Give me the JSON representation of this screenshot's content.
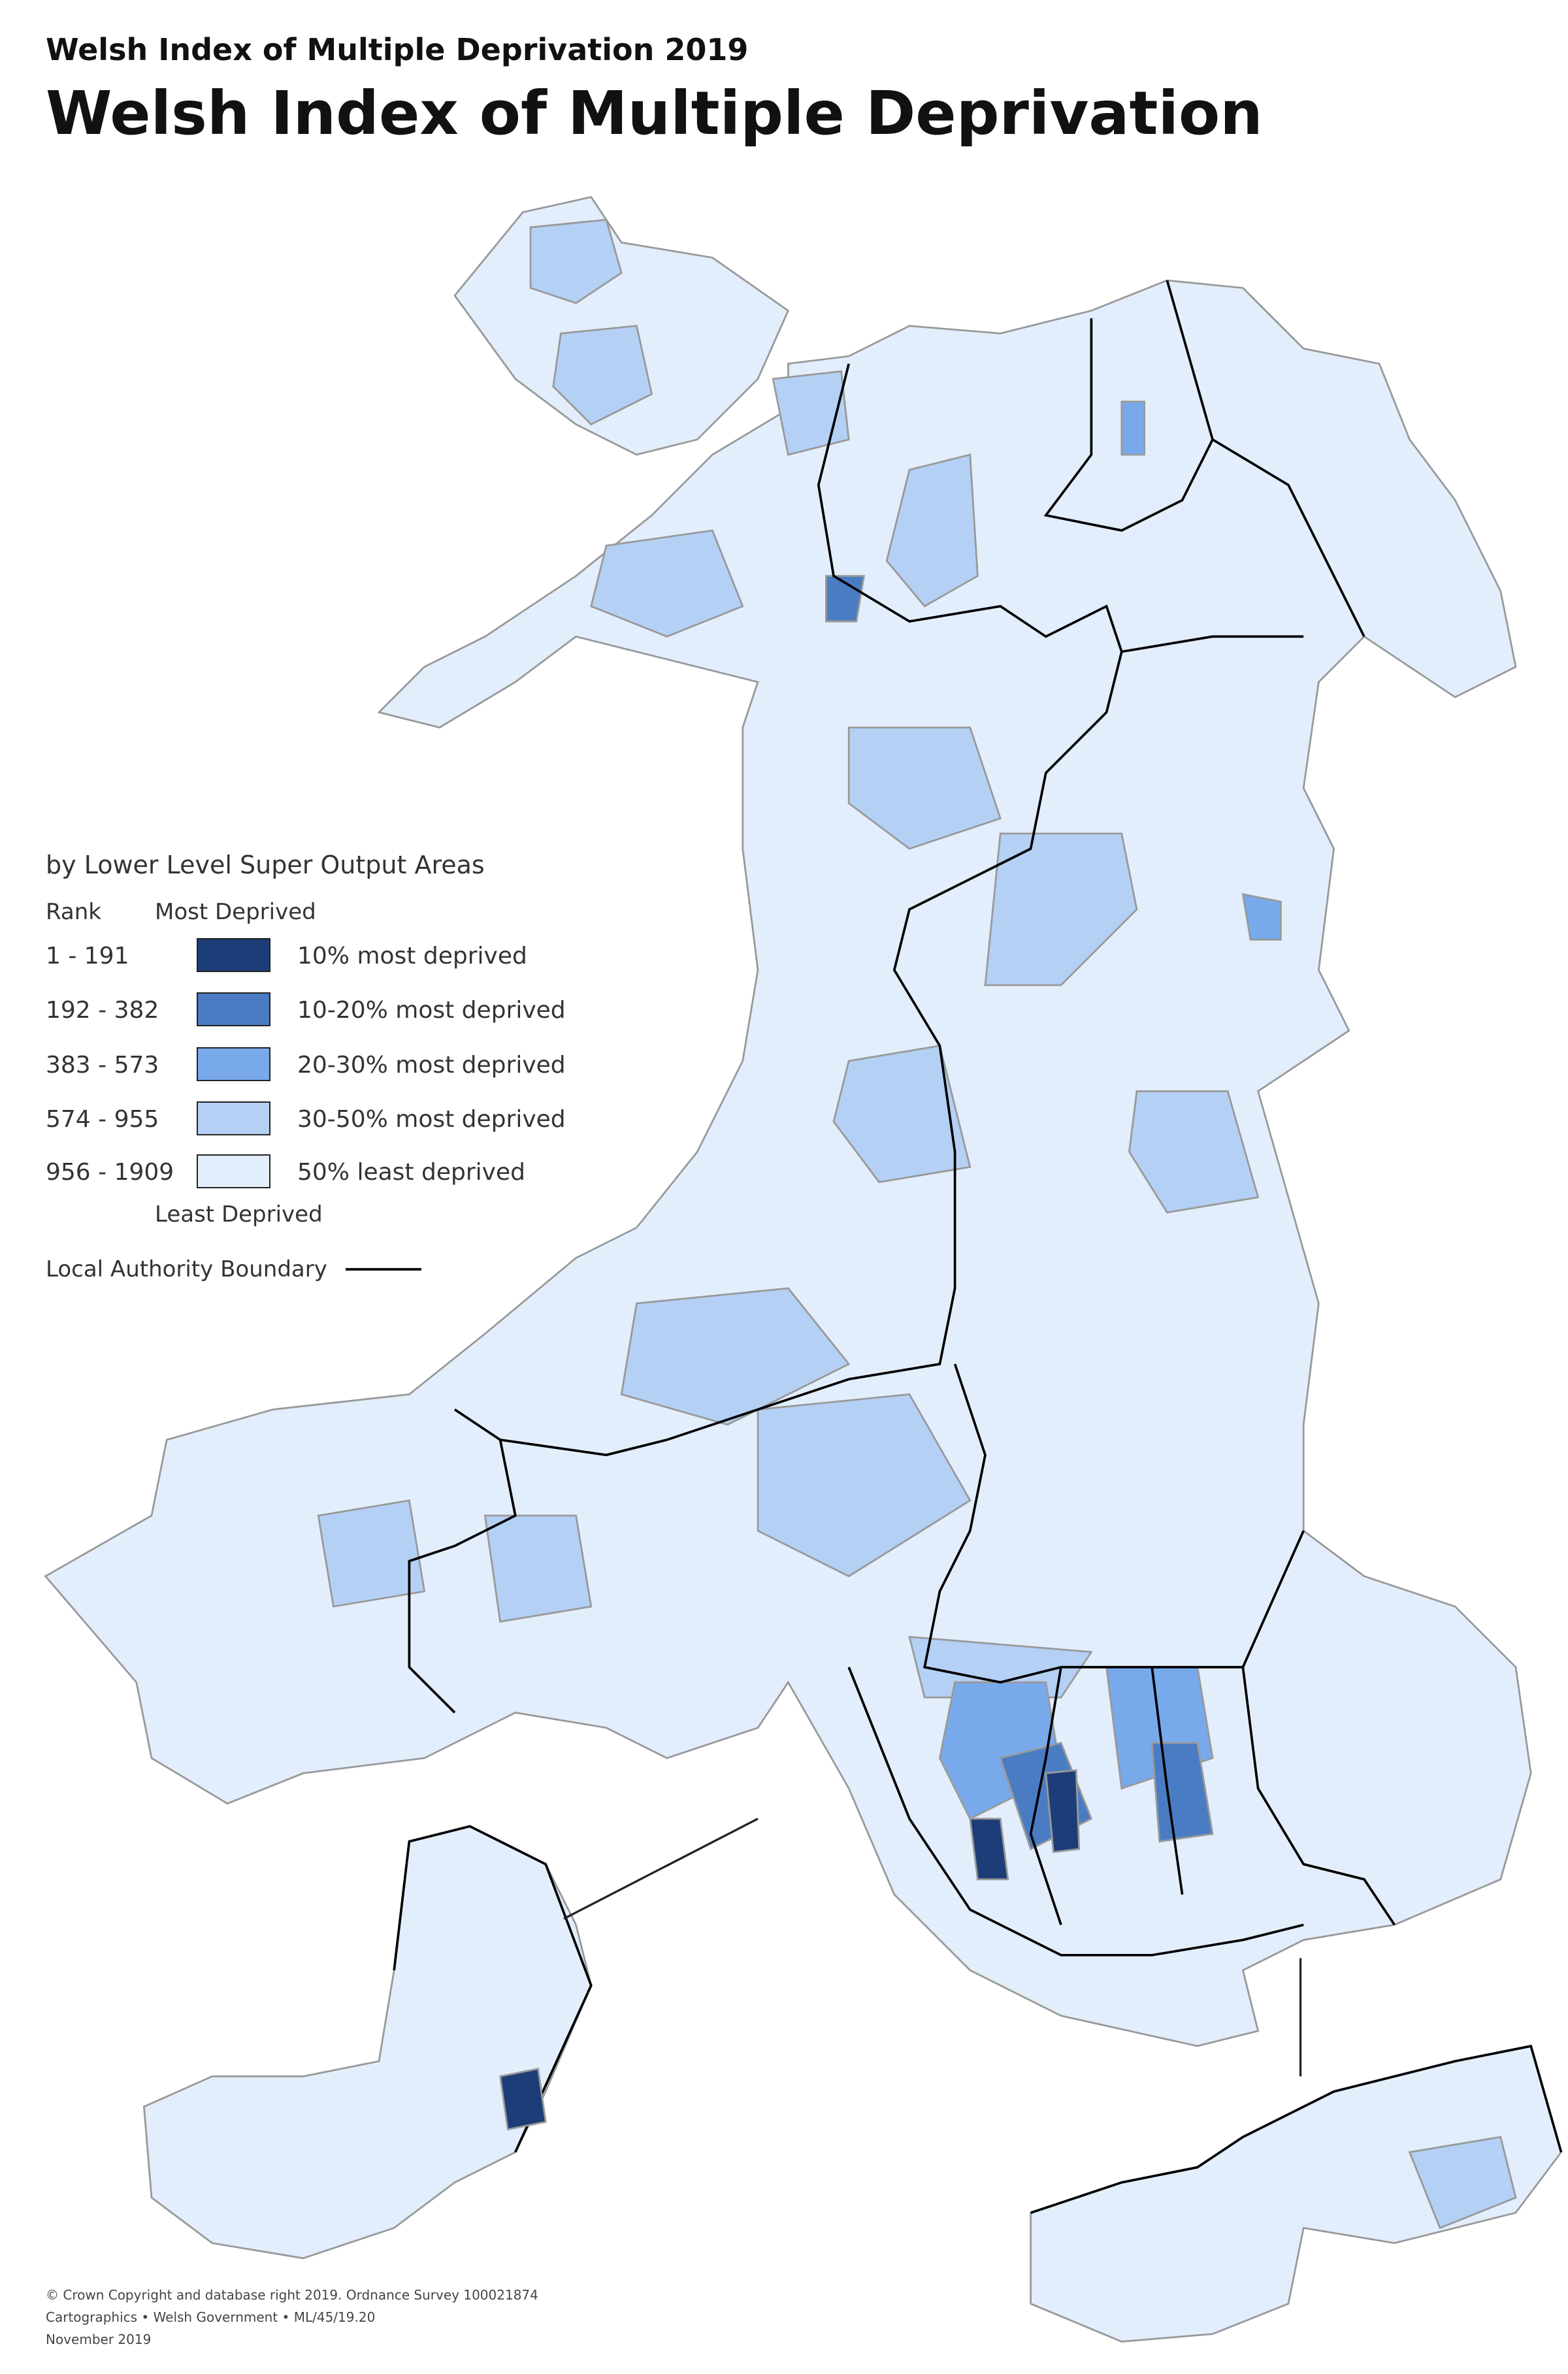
{
  "header": {
    "subtitle": "Welsh Index of Multiple Deprivation 2019",
    "title": "Welsh Index of Multiple Deprivation"
  },
  "legend": {
    "heading": "by Lower Level Super Output Areas",
    "rank_label": "Rank",
    "top_label": "Most Deprived",
    "bottom_label": "Least Deprived",
    "classes": [
      {
        "rank": "1 - 191",
        "label": "10% most deprived",
        "color": "#1c3d78"
      },
      {
        "rank": "192 - 382",
        "label": "10-20% most deprived",
        "color": "#4a7cc4"
      },
      {
        "rank": "383 - 573",
        "label": "20-30% most deprived",
        "color": "#78aaeb"
      },
      {
        "rank": "574 - 955",
        "label": "30-50% most deprived",
        "color": "#b4d0f5"
      },
      {
        "rank": "956 - 1909",
        "label": "50% least deprived",
        "color": "#e3eefc"
      }
    ],
    "boundary_label": "Local Authority Boundary"
  },
  "footer": {
    "lines": [
      "© Crown Copyright and database right 2019. Ordnance Survey 100021874",
      "Cartographics • Welsh Government • ML/45/19.20",
      "November 2019"
    ]
  }
}
